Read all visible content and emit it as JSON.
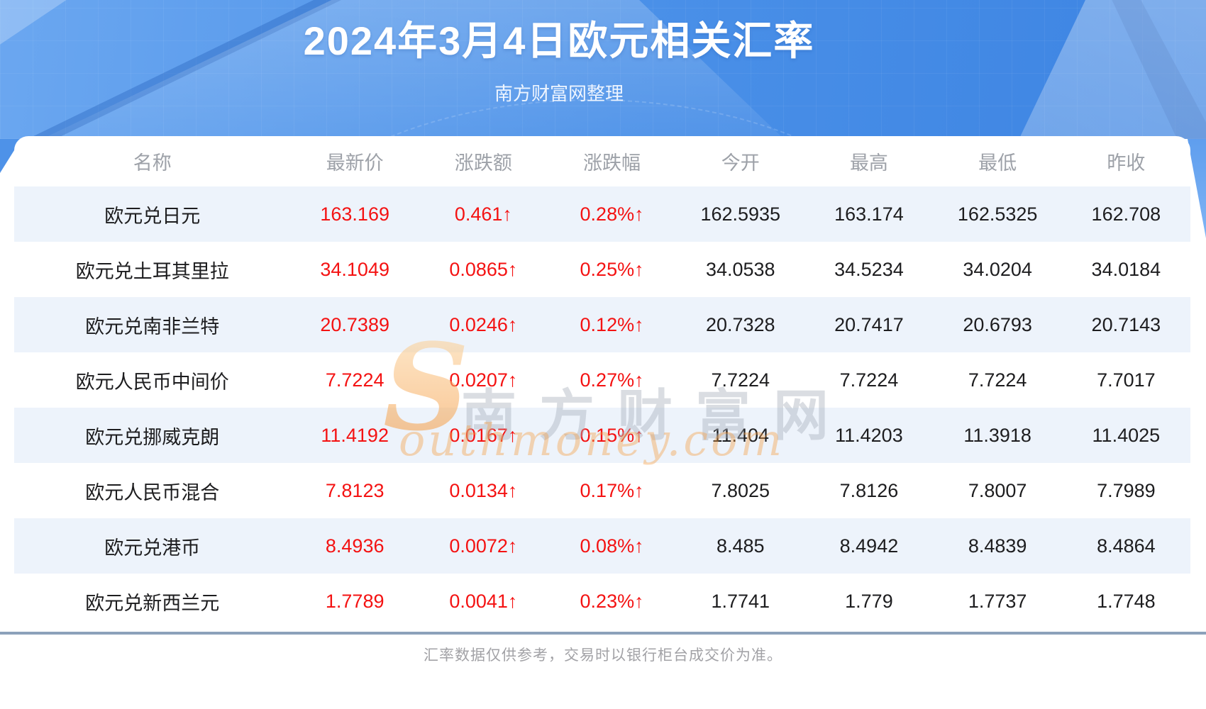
{
  "page": {
    "title": "2024年3月4日欧元相关汇率",
    "subtitle": "南方财富网整理",
    "footer_note": "汇率数据仅供参考，交易时以银行柜台成交价为准。"
  },
  "watermark": {
    "initial": "S",
    "cn_text": "南方财富网",
    "en_text": "outhmoney.com"
  },
  "colors": {
    "banner-a": "#6ba7f0",
    "banner-b": "#4a90e8",
    "banner-c": "#3d84e2",
    "row-alt": "#edf3fb",
    "red": "#f41212",
    "header-text": "#9da1a8",
    "cell-text": "#1d1d1f",
    "divider": "#8ca1ba",
    "footer-text": "#a2a2a6"
  },
  "chart_data": {
    "type": "table",
    "title": "2024年3月4日欧元相关汇率",
    "columns": [
      "名称",
      "最新价",
      "涨跌额",
      "涨跌幅",
      "今开",
      "最高",
      "最低",
      "昨收"
    ],
    "rows": [
      [
        "欧元兑日元",
        "163.169",
        "0.461↑",
        "0.28%↑",
        "162.5935",
        "163.174",
        "162.5325",
        "162.708"
      ],
      [
        "欧元兑土耳其里拉",
        "34.1049",
        "0.0865↑",
        "0.25%↑",
        "34.0538",
        "34.5234",
        "34.0204",
        "34.0184"
      ],
      [
        "欧元兑南非兰特",
        "20.7389",
        "0.0246↑",
        "0.12%↑",
        "20.7328",
        "20.7417",
        "20.6793",
        "20.7143"
      ],
      [
        "欧元人民币中间价",
        "7.7224",
        "0.0207↑",
        "0.27%↑",
        "7.7224",
        "7.7224",
        "7.7224",
        "7.7017"
      ],
      [
        "欧元兑挪威克朗",
        "11.4192",
        "0.0167↑",
        "0.15%↑",
        "11.404",
        "11.4203",
        "11.3918",
        "11.4025"
      ],
      [
        "欧元人民币混合",
        "7.8123",
        "0.0134↑",
        "0.17%↑",
        "7.8025",
        "7.8126",
        "7.8007",
        "7.7989"
      ],
      [
        "欧元兑港币",
        "8.4936",
        "0.0072↑",
        "0.08%↑",
        "8.485",
        "8.4942",
        "8.4839",
        "8.4864"
      ],
      [
        "欧元兑新西兰元",
        "1.7789",
        "0.0041↑",
        "0.23%↑",
        "1.7741",
        "1.779",
        "1.7737",
        "1.7748"
      ]
    ]
  }
}
